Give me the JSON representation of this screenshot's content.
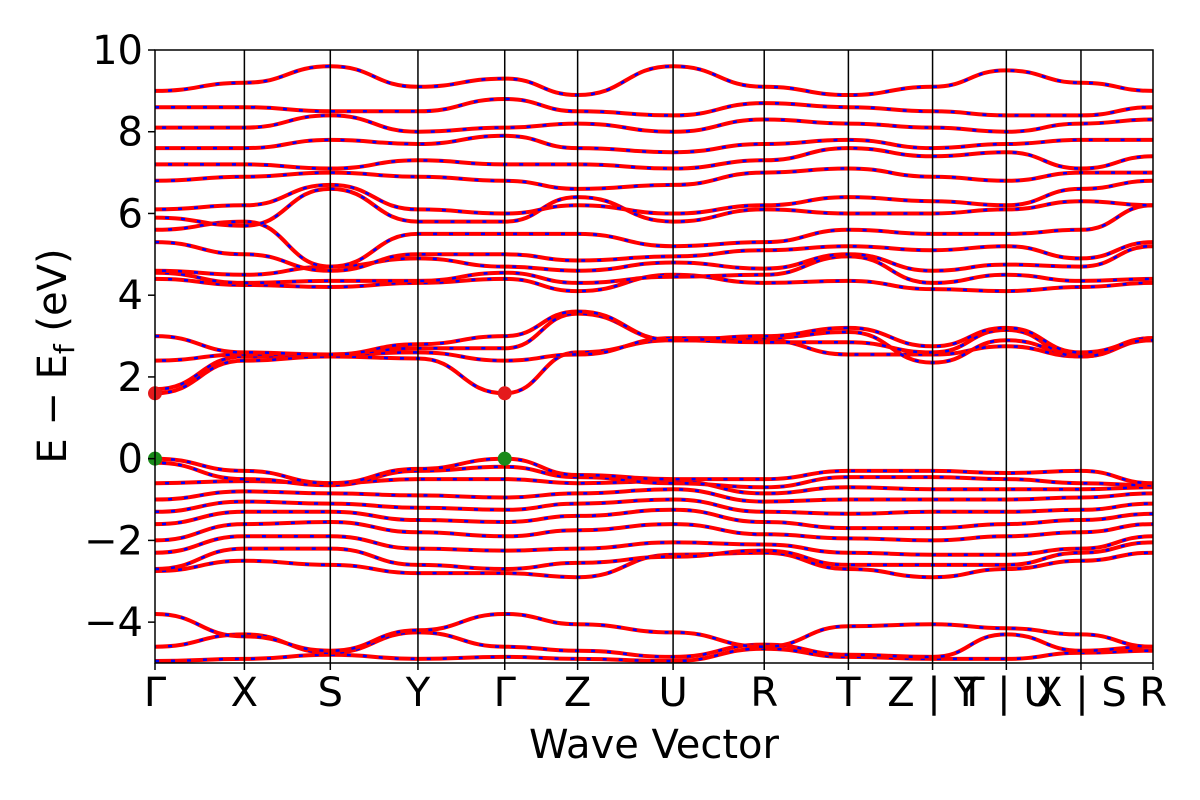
{
  "chart_data": {
    "type": "line",
    "title": "",
    "xlabel": "Wave Vector",
    "ylabel": "E − E_f (eV)",
    "ylabel_parts": {
      "main": "E − E",
      "sub": "f",
      "unit": " (eV)"
    },
    "ylim": [
      -5,
      10
    ],
    "yticks": [
      -4,
      -2,
      0,
      2,
      4,
      6,
      8,
      10
    ],
    "ytick_labels": [
      "−4",
      "−2",
      "0",
      "2",
      "4",
      "6",
      "8",
      "10"
    ],
    "xlim": [
      0,
      11.5
    ],
    "kpoint_boundaries": [
      0,
      1.03,
      2.02,
      3.03,
      4.03,
      4.87,
      5.97,
      7.02,
      7.99,
      8.96,
      9.81,
      10.67,
      11.5
    ],
    "kpoint_labels": [
      {
        "label": "Γ",
        "x": 0
      },
      {
        "label": "X",
        "x": 1.03
      },
      {
        "label": "S",
        "x": 2.02
      },
      {
        "label": "Y",
        "x": 3.03
      },
      {
        "label": "Γ",
        "x": 4.03
      },
      {
        "label": "Z",
        "x": 4.87
      },
      {
        "label": "U",
        "x": 5.97
      },
      {
        "label": "R",
        "x": 7.02
      },
      {
        "label": "T",
        "x": 7.99
      },
      {
        "label": "Z | Y",
        "x": 8.96
      },
      {
        "label": "T | U",
        "x": 9.81
      },
      {
        "label": "X | S",
        "x": 10.67
      },
      {
        "label": "R",
        "x": 11.5
      }
    ],
    "markers": [
      {
        "kind": "CBM",
        "x": 0,
        "y": 1.6,
        "color": "#e41a1c"
      },
      {
        "kind": "CBM",
        "x": 4.03,
        "y": 1.6,
        "color": "#e41a1c"
      },
      {
        "kind": "VBM",
        "x": 0,
        "y": 0.0,
        "color": "#1a8a1a"
      },
      {
        "kind": "VBM",
        "x": 4.03,
        "y": 0.0,
        "color": "#1a8a1a"
      }
    ],
    "series_style": {
      "line_color": "#ff0000",
      "dash_color": "#0000ff"
    },
    "bands": [
      {
        "band": 1,
        "gamma1": -4.95,
        "x": -4.9,
        "s": -4.8,
        "y": -4.9,
        "gamma2": -4.85,
        "z": -4.9,
        "u": -4.95,
        "r": -4.65,
        "t": -4.85,
        "zy": -4.9,
        "tu": -4.9,
        "xs": -4.75,
        "rend": -4.7
      },
      {
        "band": 2,
        "gamma1": -4.6,
        "x": -4.3,
        "s": -4.75,
        "y": -4.25,
        "gamma2": -4.6,
        "z": -4.7,
        "u": -4.85,
        "r": -4.55,
        "t": -4.8,
        "zy": -4.85,
        "tu": -4.3,
        "xs": -4.7,
        "rend": -4.6
      },
      {
        "band": 3,
        "gamma1": -3.8,
        "x": -4.35,
        "s": -4.7,
        "y": -4.2,
        "gamma2": -3.8,
        "z": -4.05,
        "u": -4.25,
        "r": -4.6,
        "t": -4.1,
        "zy": -4.05,
        "tu": -4.15,
        "xs": -4.3,
        "rend": -4.6
      },
      {
        "band": 4,
        "gamma1": -2.75,
        "x": -2.5,
        "s": -2.6,
        "y": -2.8,
        "gamma2": -2.8,
        "z": -2.9,
        "u": -2.35,
        "r": -2.3,
        "t": -2.7,
        "zy": -2.9,
        "tu": -2.7,
        "xs": -2.5,
        "rend": -2.3
      },
      {
        "band": 5,
        "gamma1": -2.7,
        "x": -2.2,
        "s": -2.2,
        "y": -2.6,
        "gamma2": -2.7,
        "z": -2.55,
        "u": -2.4,
        "r": -2.25,
        "t": -2.6,
        "zy": -2.6,
        "tu": -2.6,
        "xs": -2.3,
        "rend": -2.05
      },
      {
        "band": 6,
        "gamma1": -2.3,
        "x": -1.9,
        "s": -1.9,
        "y": -2.2,
        "gamma2": -2.25,
        "z": -2.2,
        "u": -2.05,
        "r": -2.1,
        "t": -2.3,
        "zy": -2.35,
        "tu": -2.35,
        "xs": -2.2,
        "rend": -1.9
      },
      {
        "band": 7,
        "gamma1": -2.0,
        "x": -1.6,
        "s": -1.55,
        "y": -1.8,
        "gamma2": -1.9,
        "z": -1.75,
        "u": -1.6,
        "r": -1.85,
        "t": -1.95,
        "zy": -2.0,
        "tu": -1.9,
        "xs": -1.8,
        "rend": -1.6
      },
      {
        "band": 8,
        "gamma1": -1.6,
        "x": -1.3,
        "s": -1.3,
        "y": -1.5,
        "gamma2": -1.55,
        "z": -1.4,
        "u": -1.25,
        "r": -1.55,
        "t": -1.7,
        "zy": -1.7,
        "tu": -1.6,
        "xs": -1.5,
        "rend": -1.35
      },
      {
        "band": 9,
        "gamma1": -1.3,
        "x": -1.05,
        "s": -1.1,
        "y": -1.2,
        "gamma2": -1.25,
        "z": -1.1,
        "u": -1.0,
        "r": -1.3,
        "t": -1.35,
        "zy": -1.3,
        "tu": -1.3,
        "xs": -1.25,
        "rend": -1.1
      },
      {
        "band": 10,
        "gamma1": -1.0,
        "x": -0.8,
        "s": -0.85,
        "y": -0.9,
        "gamma2": -0.95,
        "z": -0.85,
        "u": -0.75,
        "r": -1.05,
        "t": -1.0,
        "zy": -1.0,
        "tu": -1.0,
        "xs": -0.95,
        "rend": -0.85
      },
      {
        "band": 11,
        "gamma1": -0.6,
        "x": -0.55,
        "s": -0.6,
        "y": -0.5,
        "gamma2": -0.5,
        "z": -0.6,
        "u": -0.55,
        "r": -0.85,
        "t": -0.7,
        "zy": -0.75,
        "tu": -0.75,
        "xs": -0.75,
        "rend": -0.7
      },
      {
        "band": 12,
        "gamma1": -0.1,
        "x": -0.5,
        "s": -0.65,
        "y": -0.3,
        "gamma2": -0.2,
        "z": -0.45,
        "u": -0.6,
        "r": -0.7,
        "t": -0.45,
        "zy": -0.45,
        "tu": -0.5,
        "xs": -0.6,
        "rend": -0.65
      },
      {
        "band": 13,
        "gamma1": 0.0,
        "x": -0.3,
        "s": -0.6,
        "y": -0.25,
        "gamma2": 0.0,
        "z": -0.4,
        "u": -0.5,
        "r": -0.5,
        "t": -0.3,
        "zy": -0.3,
        "tu": -0.35,
        "xs": -0.3,
        "rend": -0.6
      },
      {
        "band": 14,
        "gamma1": 1.6,
        "x": 2.4,
        "s": 2.5,
        "y": 2.45,
        "gamma2": 1.6,
        "z": 2.6,
        "u": 2.9,
        "r": 2.9,
        "t": 2.55,
        "zy": 2.55,
        "tu": 2.75,
        "xs": 2.5,
        "rend": 2.9
      },
      {
        "band": 15,
        "gamma1": 1.7,
        "x": 2.5,
        "s": 2.55,
        "y": 2.6,
        "gamma2": 2.4,
        "z": 2.55,
        "u": 2.95,
        "r": 2.95,
        "t": 3.1,
        "zy": 2.35,
        "tu": 2.9,
        "xs": 2.55,
        "rend": 2.95
      },
      {
        "band": 16,
        "gamma1": 2.4,
        "x": 2.55,
        "s": 2.55,
        "y": 2.7,
        "gamma2": 2.7,
        "z": 3.55,
        "u": 2.9,
        "r": 2.85,
        "t": 2.85,
        "zy": 2.6,
        "tu": 3.15,
        "xs": 2.5,
        "rend": 2.95
      },
      {
        "band": 17,
        "gamma1": 3.0,
        "x": 2.6,
        "s": 2.55,
        "y": 2.8,
        "gamma2": 3.0,
        "z": 3.6,
        "u": 2.9,
        "r": 3.0,
        "t": 3.2,
        "zy": 2.75,
        "tu": 3.2,
        "xs": 2.6,
        "rend": 2.9
      },
      {
        "band": 18,
        "gamma1": 4.4,
        "x": 4.25,
        "s": 4.2,
        "y": 4.3,
        "gamma2": 4.4,
        "z": 4.1,
        "u": 4.5,
        "r": 4.3,
        "t": 4.35,
        "zy": 4.15,
        "tu": 4.1,
        "xs": 4.2,
        "rend": 4.3
      },
      {
        "band": 19,
        "gamma1": 4.55,
        "x": 4.3,
        "s": 4.35,
        "y": 4.35,
        "gamma2": 4.55,
        "z": 4.3,
        "u": 4.45,
        "r": 4.5,
        "t": 4.95,
        "zy": 4.3,
        "tu": 4.5,
        "xs": 4.35,
        "rend": 4.4
      },
      {
        "band": 20,
        "gamma1": 4.6,
        "x": 4.5,
        "s": 4.7,
        "y": 4.9,
        "gamma2": 4.7,
        "z": 4.6,
        "u": 4.8,
        "r": 4.65,
        "t": 5.0,
        "zy": 4.6,
        "tu": 4.75,
        "xs": 4.7,
        "rend": 5.2
      },
      {
        "band": 21,
        "gamma1": 5.3,
        "x": 5.0,
        "s": 4.6,
        "y": 5.0,
        "gamma2": 5.0,
        "z": 4.85,
        "u": 4.95,
        "r": 5.1,
        "t": 5.2,
        "zy": 5.1,
        "tu": 5.2,
        "xs": 4.9,
        "rend": 5.3
      },
      {
        "band": 22,
        "gamma1": 5.6,
        "x": 5.8,
        "s": 4.7,
        "y": 5.5,
        "gamma2": 5.5,
        "z": 5.5,
        "u": 5.2,
        "r": 5.3,
        "t": 5.6,
        "zy": 5.5,
        "tu": 5.5,
        "xs": 5.6,
        "rend": 6.2
      },
      {
        "band": 23,
        "gamma1": 5.9,
        "x": 5.7,
        "s": 6.6,
        "y": 5.8,
        "gamma2": 5.8,
        "z": 6.4,
        "u": 5.8,
        "r": 6.1,
        "t": 6.0,
        "zy": 6.0,
        "tu": 6.1,
        "xs": 6.3,
        "rend": 6.2
      },
      {
        "band": 24,
        "gamma1": 6.1,
        "x": 6.2,
        "s": 6.7,
        "y": 6.1,
        "gamma2": 6.0,
        "z": 6.2,
        "u": 6.0,
        "r": 6.2,
        "t": 6.4,
        "zy": 6.3,
        "tu": 6.2,
        "xs": 6.6,
        "rend": 6.8
      },
      {
        "band": 25,
        "gamma1": 6.8,
        "x": 6.9,
        "s": 7.0,
        "y": 6.9,
        "gamma2": 6.8,
        "z": 6.6,
        "u": 6.7,
        "r": 7.0,
        "t": 7.1,
        "zy": 6.9,
        "tu": 6.8,
        "xs": 7.0,
        "rend": 7.0
      },
      {
        "band": 26,
        "gamma1": 7.2,
        "x": 7.2,
        "s": 7.1,
        "y": 7.3,
        "gamma2": 7.2,
        "z": 7.2,
        "u": 7.1,
        "r": 7.3,
        "t": 7.6,
        "zy": 7.4,
        "tu": 7.5,
        "xs": 7.1,
        "rend": 7.4
      },
      {
        "band": 27,
        "gamma1": 7.6,
        "x": 7.6,
        "s": 7.8,
        "y": 7.7,
        "gamma2": 7.9,
        "z": 7.6,
        "u": 7.5,
        "r": 7.7,
        "t": 7.8,
        "zy": 7.6,
        "tu": 7.7,
        "xs": 7.8,
        "rend": 7.8
      },
      {
        "band": 28,
        "gamma1": 8.1,
        "x": 8.1,
        "s": 8.4,
        "y": 8.0,
        "gamma2": 8.1,
        "z": 8.2,
        "u": 8.0,
        "r": 8.3,
        "t": 8.2,
        "zy": 8.1,
        "tu": 8.0,
        "xs": 8.2,
        "rend": 8.3
      },
      {
        "band": 29,
        "gamma1": 8.6,
        "x": 8.6,
        "s": 8.5,
        "y": 8.5,
        "gamma2": 8.8,
        "z": 8.5,
        "u": 8.4,
        "r": 8.7,
        "t": 8.6,
        "zy": 8.5,
        "tu": 8.4,
        "xs": 8.4,
        "rend": 8.6
      },
      {
        "band": 30,
        "gamma1": 9.0,
        "x": 9.2,
        "s": 9.6,
        "y": 9.1,
        "gamma2": 9.3,
        "z": 8.9,
        "u": 9.6,
        "r": 9.1,
        "t": 8.9,
        "zy": 9.1,
        "tu": 9.5,
        "xs": 9.2,
        "rend": 9.0
      }
    ]
  }
}
